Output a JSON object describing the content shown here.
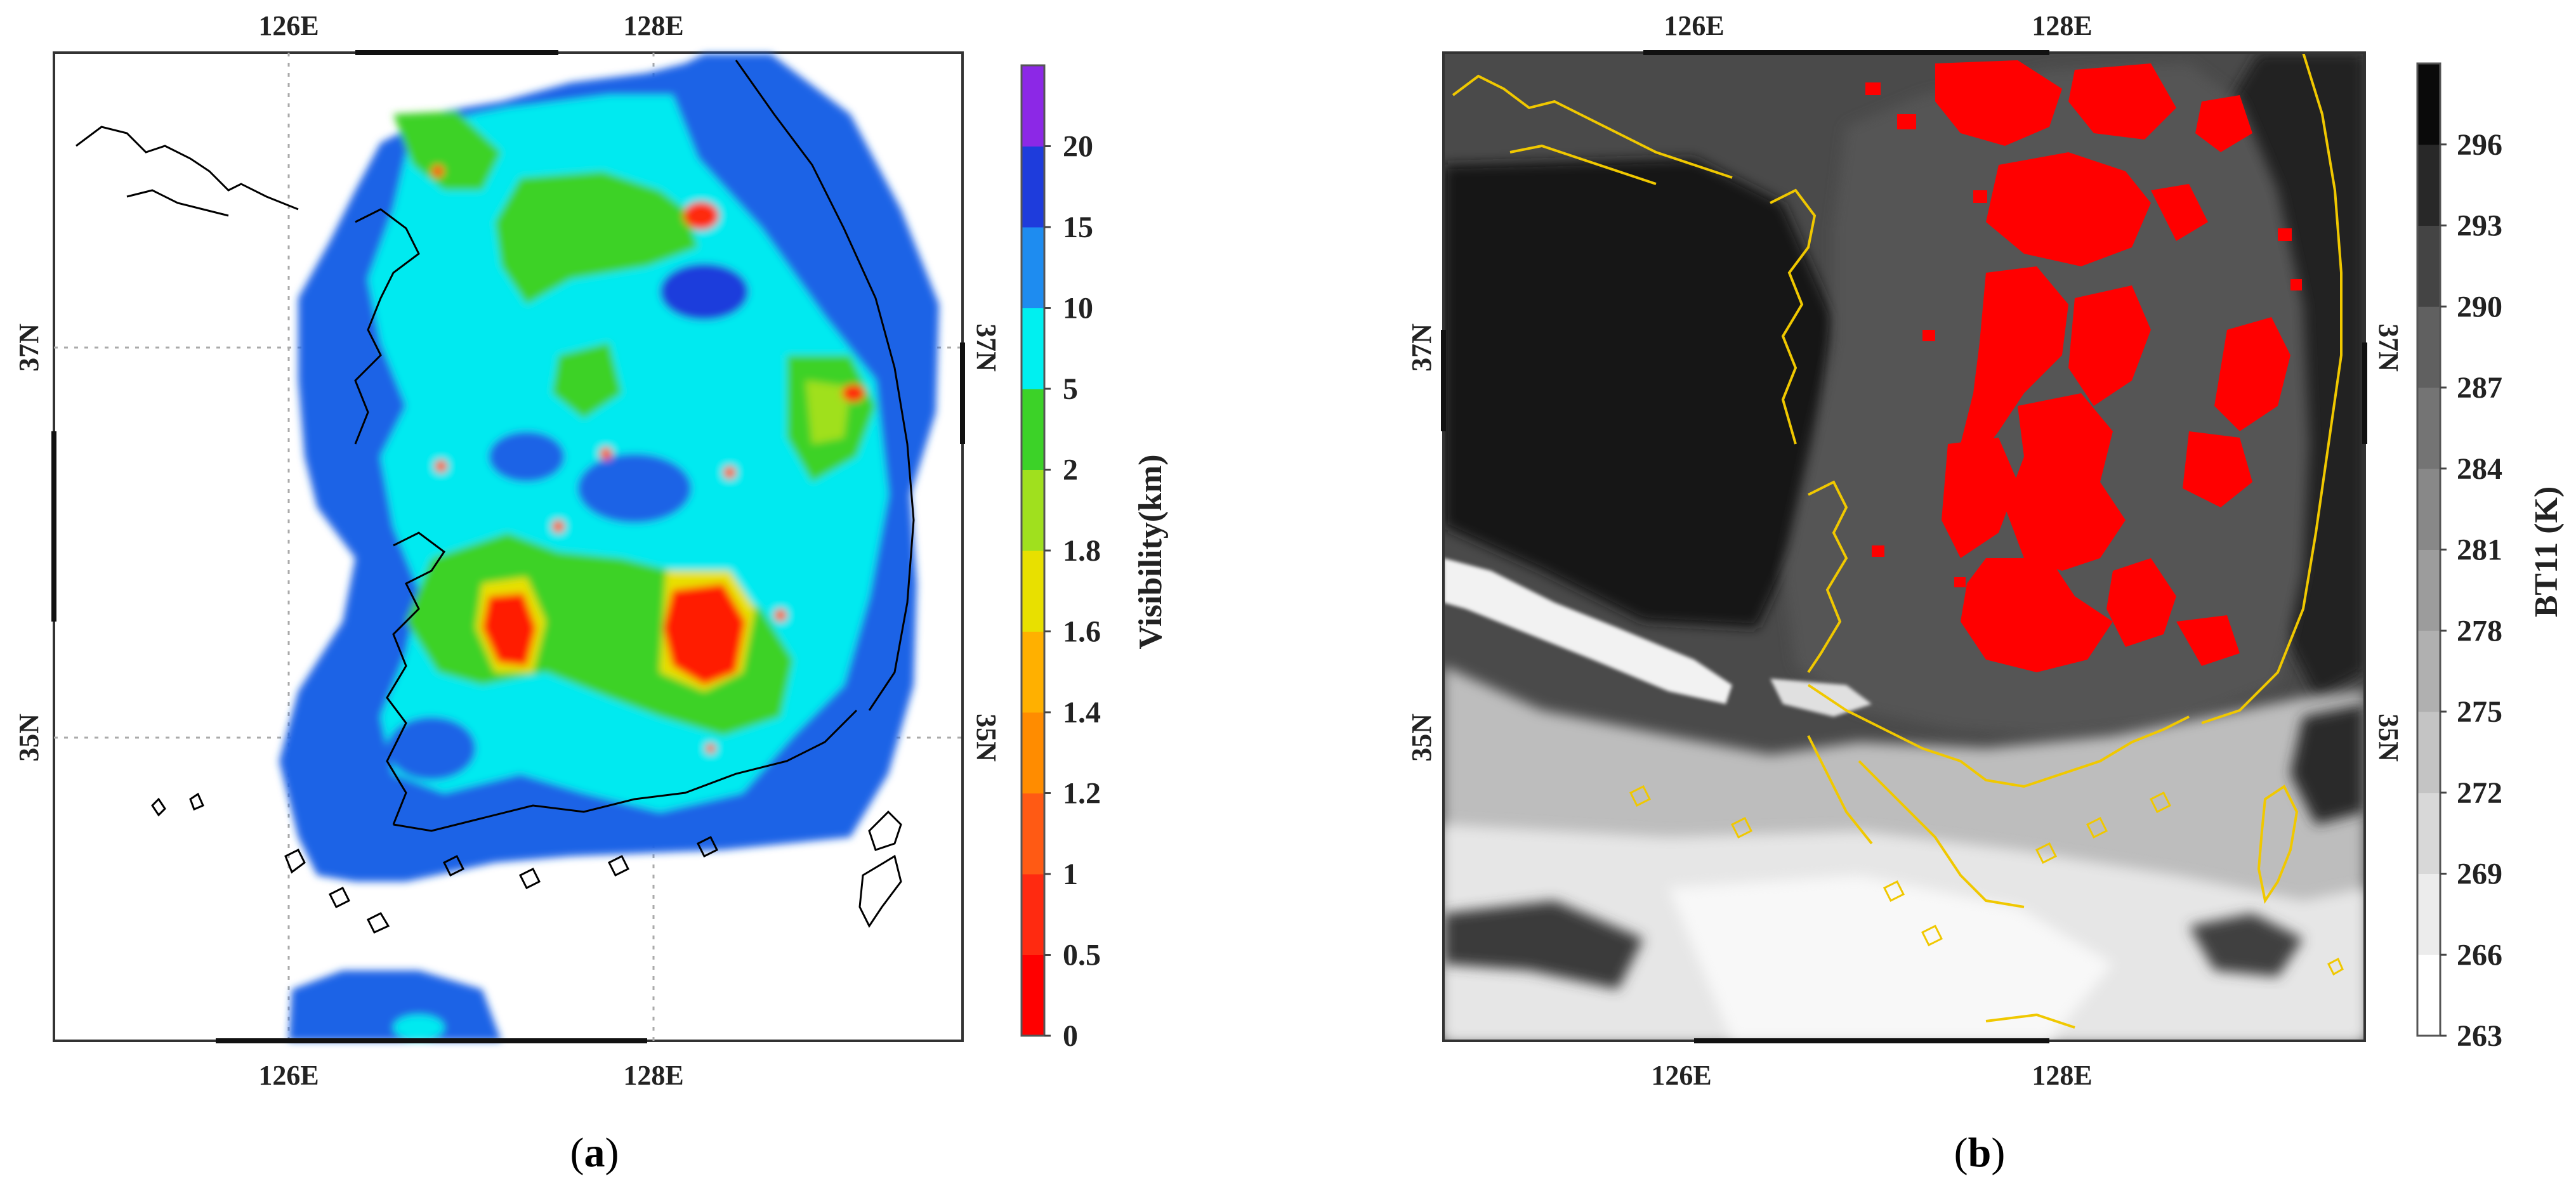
{
  "panels": [
    {
      "id": "a",
      "caption_open": "(",
      "caption_letter": "a",
      "caption_close": ")",
      "lon_ticks": [
        "126E",
        "128E"
      ],
      "lat_ticks_left": [
        "37N",
        "35N"
      ],
      "lat_ticks_right": [
        "37N",
        "35N"
      ],
      "colorbar": {
        "title": "Visibility(km)",
        "labels": [
          "0",
          "0.5",
          "1",
          "1.2",
          "1.4",
          "1.6",
          "1.8",
          "2",
          "5",
          "10",
          "15",
          "20"
        ],
        "colors": [
          "#ff0000",
          "#ff2a10",
          "#ff5a14",
          "#ff8c00",
          "#ffb000",
          "#e8e000",
          "#a0e01e",
          "#3cd228",
          "#00f0f0",
          "#1e8cf0",
          "#1e3cdc",
          "#8c28e6"
        ]
      }
    },
    {
      "id": "b",
      "caption_open": "(",
      "caption_letter": "b",
      "caption_close": ")",
      "lon_ticks": [
        "126E",
        "128E"
      ],
      "lat_ticks_left": [
        "37N",
        "35N"
      ],
      "lat_ticks_right": [
        "37N",
        "35N"
      ],
      "colorbar": {
        "title": "BT11 (K)",
        "labels": [
          "263",
          "266",
          "269",
          "272",
          "275",
          "278",
          "281",
          "284",
          "287",
          "290",
          "293",
          "296"
        ],
        "colors": [
          "#ffffff",
          "#ececec",
          "#d8d8d8",
          "#c4c4c4",
          "#b0b0b0",
          "#9c9c9c",
          "#888888",
          "#747474",
          "#606060",
          "#444444",
          "#282828",
          "#0a0a0a"
        ]
      }
    }
  ]
}
